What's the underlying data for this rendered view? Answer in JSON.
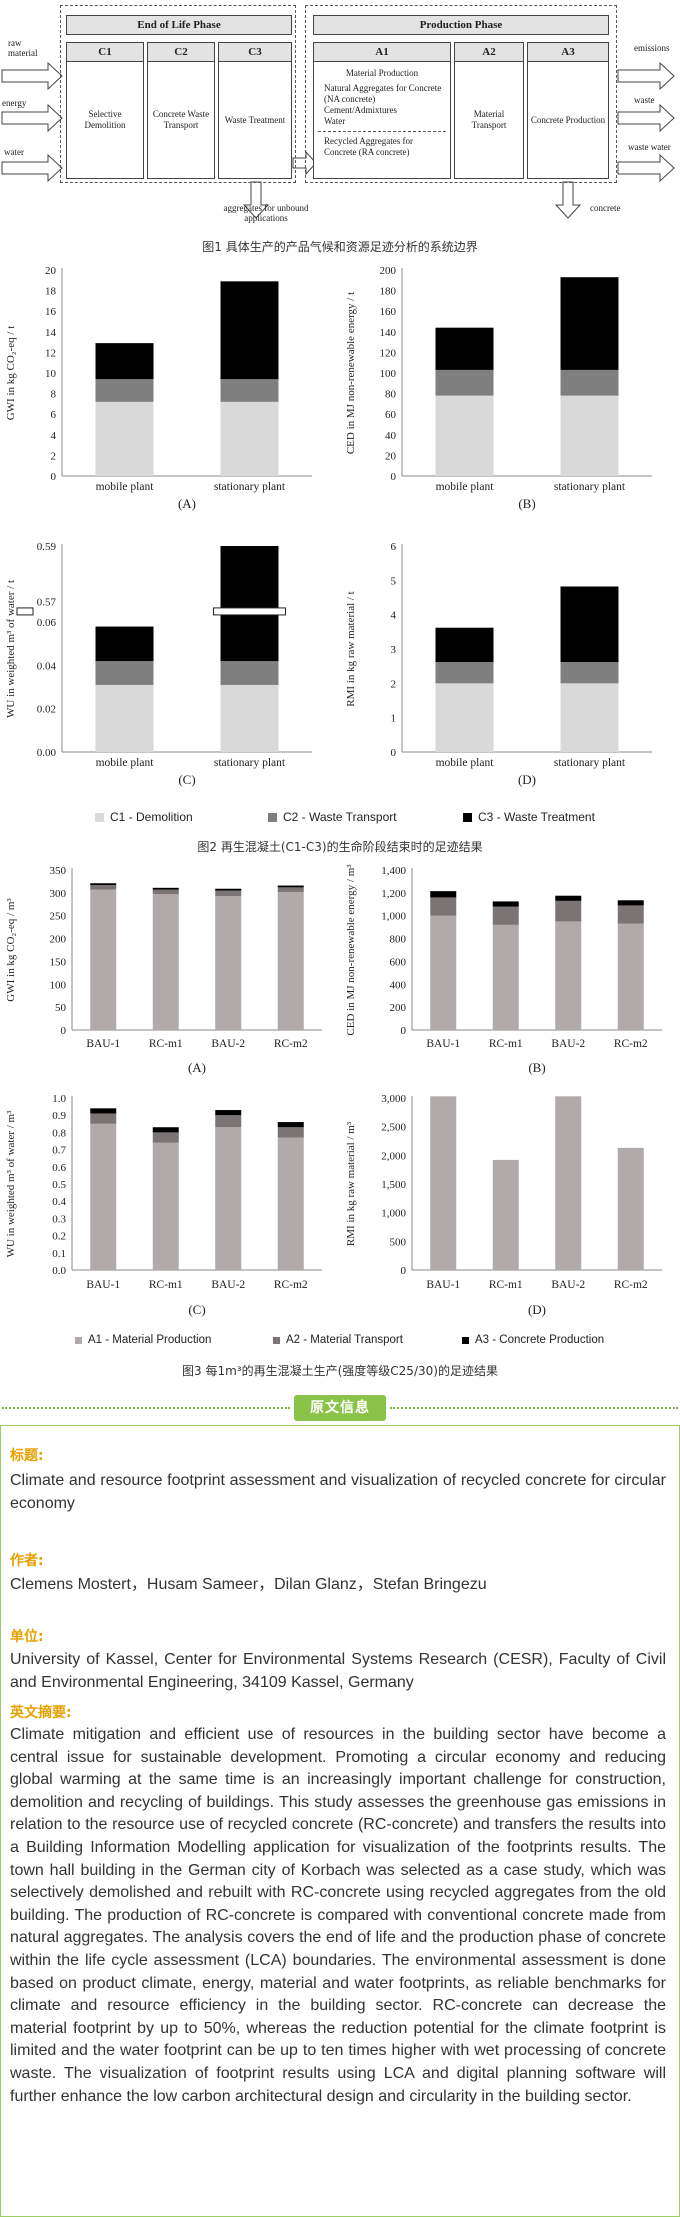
{
  "fig1": {
    "left_inputs": [
      "raw material",
      "energy",
      "water"
    ],
    "phases": [
      {
        "title": "End of Life Phase",
        "steps": [
          {
            "code": "C1",
            "body": "Selective Demolition"
          },
          {
            "code": "C2",
            "body": "Concrete Waste Transport"
          },
          {
            "code": "C3",
            "body": "Waste Treatment"
          }
        ]
      },
      {
        "title": "Production Phase",
        "steps": [
          {
            "code": "A1",
            "body_title": "Material Production",
            "body_items": [
              "Natural Aggregates for Concrete (NA concrete)",
              "Cement/Admixtures",
              "Water"
            ],
            "body_recycled": "Recycled Aggregates for Concrete (RA concrete)"
          },
          {
            "code": "A2",
            "body": "Material Transport"
          },
          {
            "code": "A3",
            "body": "Concrete Production"
          }
        ]
      }
    ],
    "right_outputs": [
      "emissions",
      "waste",
      "waste water"
    ],
    "bottom_outputs": {
      "aggregates": "aggregates for unbound applications",
      "concrete": "concrete"
    },
    "caption": "图1 具体生产的产品气候和资源足迹分析的系统边界"
  },
  "fig2": {
    "caption": "图2 再生混凝土(C1-C3)的生命阶段结束时的足迹结果",
    "legend": [
      "C1 - Demolition",
      "C2 - Waste Transport",
      "C3 - Waste Treatment"
    ],
    "colors": {
      "C1": "#d9d9d9",
      "C2": "#7f7f7f",
      "C3": "#000000"
    }
  },
  "fig3": {
    "caption": "图3 每1m³的再生混凝土生产(强度等级C25/30)的足迹结果",
    "legend": [
      "A1 - Material Production",
      "A2 - Material Transport",
      "A3 - Concrete Production"
    ],
    "colors": {
      "A1": "#b0aaaa",
      "A2": "#7a7474",
      "A3": "#000000"
    }
  },
  "chart_data": [
    {
      "id": "2A",
      "type": "bar",
      "stacked": true,
      "panel": "(A)",
      "ylabel": "GWI in kg CO₂-eq / t",
      "categories": [
        "mobile plant",
        "stationary plant"
      ],
      "ylim": [
        0,
        20
      ],
      "ticks": [
        0,
        2,
        4,
        6,
        8,
        10,
        12,
        14,
        16,
        18,
        20
      ],
      "series": [
        {
          "name": "C1 - Demolition",
          "values": [
            7.2,
            7.2
          ]
        },
        {
          "name": "C2 - Waste Transport",
          "values": [
            2.2,
            2.2
          ]
        },
        {
          "name": "C3 - Waste Treatment",
          "values": [
            3.5,
            9.5
          ]
        }
      ]
    },
    {
      "id": "2B",
      "type": "bar",
      "stacked": true,
      "panel": "(B)",
      "ylabel": "CED in MJ non-renewable energy / t",
      "categories": [
        "mobile plant",
        "stationary plant"
      ],
      "ylim": [
        0,
        200
      ],
      "ticks": [
        0,
        20,
        40,
        60,
        80,
        100,
        120,
        140,
        160,
        180,
        200
      ],
      "series": [
        {
          "name": "C1 - Demolition",
          "values": [
            78,
            78
          ]
        },
        {
          "name": "C2 - Waste Transport",
          "values": [
            25,
            25
          ]
        },
        {
          "name": "C3 - Waste Treatment",
          "values": [
            41,
            90
          ]
        }
      ]
    },
    {
      "id": "2C",
      "type": "bar",
      "stacked": true,
      "broken_axis": true,
      "panel": "(C)",
      "ylabel": "WU in weighted m³ of water / t",
      "categories": [
        "mobile plant",
        "stationary plant"
      ],
      "ylim": [
        0,
        0.59
      ],
      "ticks": [
        "0.00",
        "0.02",
        "0.04",
        "0.06",
        "0.57",
        "0.59"
      ],
      "series": [
        {
          "name": "C1 - Demolition",
          "values": [
            0.031,
            0.031
          ]
        },
        {
          "name": "C2 - Waste Transport",
          "values": [
            0.011,
            0.011
          ]
        },
        {
          "name": "C3 - Waste Treatment",
          "values": [
            0.016,
            0.548
          ]
        }
      ]
    },
    {
      "id": "2D",
      "type": "bar",
      "stacked": true,
      "panel": "(D)",
      "ylabel": "RMI in kg raw material / t",
      "categories": [
        "mobile plant",
        "stationary plant"
      ],
      "ylim": [
        0,
        6
      ],
      "ticks": [
        0,
        1,
        2,
        3,
        4,
        5,
        6
      ],
      "series": [
        {
          "name": "C1 - Demolition",
          "values": [
            2.0,
            2.0
          ]
        },
        {
          "name": "C2 - Waste Transport",
          "values": [
            0.62,
            0.62
          ]
        },
        {
          "name": "C3 - Waste Treatment",
          "values": [
            1.0,
            2.2
          ]
        }
      ]
    },
    {
      "id": "3A",
      "type": "bar",
      "stacked": true,
      "panel": "(A)",
      "ylabel": "GWI in kg CO₂-eq / m³",
      "categories": [
        "BAU-1",
        "RC-m1",
        "BAU-2",
        "RC-m2"
      ],
      "ylim": [
        0,
        350
      ],
      "ticks": [
        0,
        50,
        100,
        150,
        200,
        250,
        300,
        350
      ],
      "series": [
        {
          "name": "A1 - Material Production",
          "values": [
            307,
            297,
            293,
            302
          ]
        },
        {
          "name": "A2 - Material Transport",
          "values": [
            10,
            10,
            12,
            10
          ]
        },
        {
          "name": "A3 - Concrete Production",
          "values": [
            4,
            4,
            4,
            4
          ]
        }
      ]
    },
    {
      "id": "3B",
      "type": "bar",
      "stacked": true,
      "panel": "(B)",
      "ylabel": "CED in MJ non-renewable energy / m³",
      "categories": [
        "BAU-1",
        "RC-m1",
        "BAU-2",
        "RC-m2"
      ],
      "ylim": [
        0,
        1400
      ],
      "ticks": [
        "0",
        "200",
        "400",
        "600",
        "800",
        "1,000",
        "1,200",
        "1,400"
      ],
      "series": [
        {
          "name": "A1 - Material Production",
          "values": [
            1000,
            920,
            950,
            930
          ]
        },
        {
          "name": "A2 - Material Transport",
          "values": [
            160,
            160,
            180,
            160
          ]
        },
        {
          "name": "A3 - Concrete Production",
          "values": [
            55,
            45,
            45,
            45
          ]
        }
      ]
    },
    {
      "id": "3C",
      "type": "bar",
      "stacked": true,
      "panel": "(C)",
      "ylabel": "WU in weighted m³ of water / m³",
      "categories": [
        "BAU-1",
        "RC-m1",
        "BAU-2",
        "RC-m2"
      ],
      "ylim": [
        0,
        1.0
      ],
      "ticks": [
        "0.0",
        "0.1",
        "0.2",
        "0.3",
        "0.4",
        "0.5",
        "0.6",
        "0.7",
        "0.8",
        "0.9",
        "1.0"
      ],
      "series": [
        {
          "name": "A1 - Material Production",
          "values": [
            0.85,
            0.74,
            0.83,
            0.77
          ]
        },
        {
          "name": "A2 - Material Transport",
          "values": [
            0.06,
            0.06,
            0.07,
            0.06
          ]
        },
        {
          "name": "A3 - Concrete Production",
          "values": [
            0.03,
            0.03,
            0.03,
            0.03
          ]
        }
      ]
    },
    {
      "id": "3D",
      "type": "bar",
      "stacked": true,
      "panel": "(D)",
      "ylabel": "RMI in kg raw material / m³",
      "categories": [
        "BAU-1",
        "RC-m1",
        "BAU-2",
        "RC-m2"
      ],
      "ylim": [
        0,
        3000
      ],
      "ticks": [
        "0",
        "500",
        "1,000",
        "1,500",
        "2,000",
        "2,500",
        "3,000"
      ],
      "series": [
        {
          "name": "A1 - Material Production",
          "values": [
            3030,
            1920,
            3030,
            2130
          ]
        },
        {
          "name": "A2 - Material Transport",
          "values": [
            0,
            0,
            0,
            0
          ]
        },
        {
          "name": "A3 - Concrete Production",
          "values": [
            0,
            0,
            0,
            0
          ]
        }
      ]
    }
  ],
  "info": {
    "banner": "原文信息",
    "title_label": "标题:",
    "title": "Climate and resource footprint assessment and visualization of recycled concrete for circular economy",
    "authors_label": "作者:",
    "authors": "Clemens Mostert，Husam Sameer，Dilan Glanz，Stefan Bringezu",
    "affiliation_label": "单位:",
    "affiliation": "University of Kassel, Center for Environmental Systems Research (CESR), Faculty of Civil and Environmental Engineering, 34109 Kassel, Germany",
    "abstract_label": "英文摘要:",
    "abstract": "Climate mitigation and efficient use of resources in the building sector have become a central issue for sustainable development. Promoting a circular economy and reducing global warming at the same time is an increasingly important challenge for construction, demolition and recycling of buildings. This study assesses the greenhouse gas emissions in relation to the resource use of recycled concrete (RC-concrete) and transfers the results into a Building Information Modelling application for visualization of the footprints results. The town hall building in the German city of Korbach was selected as a case study, which was selectively demolished and rebuilt with RC-concrete using recycled aggregates from the old building. The production of RC-concrete is compared with conventional concrete made from natural aggregates. The analysis covers the end of life and the production phase of concrete within the life cycle assessment (LCA) boundaries. The environmental assessment is done based on product climate, energy, material and water footprints, as reliable benchmarks for climate and resource efficiency in the building sector. RC-concrete can decrease the material footprint by up to 50%, whereas the reduction potential for the climate footprint is limited and the water footprint can be up to ten times higher with wet processing of concrete waste. The visualization of footprint results using LCA and digital planning software will further enhance the low carbon architectural design and circularity in the building sector."
  }
}
